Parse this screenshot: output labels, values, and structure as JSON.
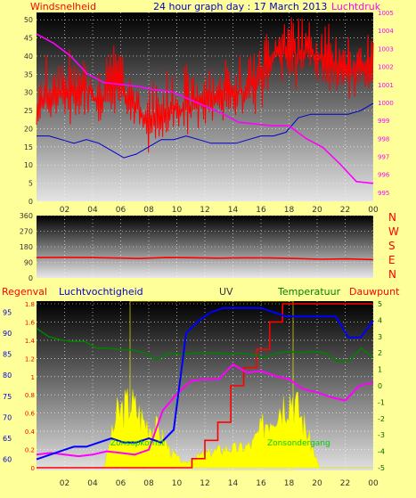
{
  "header": {
    "left_label": "Windsnelheid",
    "title": "24 hour graph day : 17 March 2013",
    "right_label": "Luchtdruk"
  },
  "mid": {
    "compass": [
      "N",
      "W",
      "S",
      "E",
      "N"
    ]
  },
  "bottom_header": {
    "regenval": "Regenval",
    "luchtvochtigheid": "Luchtvochtigheid",
    "uv": "UV",
    "temperatuur": "Temperatuur",
    "dauwpunt": "Dauwpunt"
  },
  "annotations": {
    "sunrise": "Zonsopkomst",
    "sunset": "Zonsondergang"
  },
  "colors": {
    "wind": "#ff0000",
    "gust": "#0000cc",
    "pressure": "#ff00ff",
    "humidity": "#0000ff",
    "temperature": "#008000",
    "dewpoint": "#ff00ff",
    "rain": "#ff0000",
    "uv": "#ffff00",
    "left_header": "#ff0000",
    "title": "#0000cc",
    "right_header": "#ff00ff"
  },
  "chart_data": [
    {
      "type": "line",
      "x_tick_labels": [
        "02",
        "04",
        "06",
        "08",
        "10",
        "12",
        "14",
        "16",
        "18",
        "20",
        "22",
        "00"
      ],
      "y_left_ticks": [
        "0",
        "5",
        "10",
        "15",
        "20",
        "25",
        "30",
        "35",
        "40",
        "45",
        "50"
      ],
      "y_left_range": [
        0,
        52
      ],
      "y_right_ticks": [
        "995",
        "996",
        "997",
        "998",
        "999",
        "1000",
        "1001",
        "1002",
        "1003",
        "1004",
        "1005"
      ],
      "y_right_range": [
        994.5,
        1005
      ],
      "series": [
        {
          "name": "Windsnelheid",
          "axis": "left",
          "values": [
            25,
            28,
            30,
            29,
            31,
            27,
            32,
            30,
            26,
            22,
            24,
            26,
            25,
            27,
            28,
            30,
            29,
            31,
            34,
            40,
            42,
            40,
            41,
            39,
            37,
            36,
            36,
            39
          ]
        },
        {
          "name": "",
          "axis": "left",
          "values": [
            18,
            18,
            17,
            16,
            17,
            16,
            14,
            12,
            13,
            15,
            17,
            17,
            18,
            17,
            16,
            16,
            16,
            17,
            18,
            18,
            19,
            23,
            24,
            24,
            24,
            24,
            25,
            27
          ]
        },
        {
          "name": "Luchtdruk",
          "axis": "right",
          "values": [
            1003.8,
            1003.3,
            1002.6,
            1001.6,
            1001.1,
            1001.0,
            1000.9,
            1000.7,
            1000.6,
            1000.2,
            999.8,
            999.4,
            998.9,
            998.8,
            998.7,
            998.7,
            998.0,
            997.5,
            996.6,
            995.6,
            995.5
          ]
        }
      ]
    },
    {
      "type": "line",
      "x_tick_labels": [
        "02",
        "04",
        "06",
        "08",
        "10",
        "12",
        "14",
        "16",
        "18",
        "20",
        "22",
        "00"
      ],
      "y_ticks": [
        "0",
        "90",
        "180",
        "270",
        "360"
      ],
      "ylim": [
        0,
        360
      ],
      "series": [
        {
          "name": "",
          "values": [
            118,
            119,
            118,
            115,
            112,
            118,
            117,
            114,
            116,
            115,
            112,
            108,
            110,
            106
          ]
        }
      ]
    },
    {
      "type": "line",
      "x_tick_labels": [
        "02",
        "04",
        "06",
        "08",
        "10",
        "12",
        "14",
        "16",
        "18",
        "20",
        "22",
        "00"
      ],
      "y_left_far_ticks": [
        "60",
        "65",
        "70",
        "75",
        "80",
        "85",
        "90",
        "95"
      ],
      "y_left_far_range": [
        58,
        97
      ],
      "y_left_ticks": [
        "0",
        "0.2",
        "0.4",
        "0.6",
        "0.8",
        "1",
        "1.2",
        "1.4",
        "1.6",
        "1.8"
      ],
      "y_left_range": [
        0,
        1.8
      ],
      "y_right_ticks": [
        "-5",
        "-4",
        "-3",
        "-2",
        "-1",
        "0",
        "1",
        "2",
        "3",
        "4",
        "5"
      ],
      "y_right_range": [
        -5,
        5
      ],
      "series": [
        {
          "name": "Luchtvochtigheid",
          "axis": "left_far",
          "values": [
            60,
            61,
            62,
            63,
            63,
            64,
            65,
            64,
            64,
            65,
            64,
            67,
            90,
            93,
            95,
            96,
            96,
            96,
            96,
            95,
            94,
            94,
            94,
            94,
            94,
            89,
            89,
            93
          ]
        },
        {
          "name": "Temperatuur",
          "axis": "right",
          "values": [
            3.5,
            3.0,
            2.8,
            2.7,
            2.7,
            2.3,
            2.3,
            2.2,
            2.2,
            2.0,
            1.6,
            2.0,
            1.9,
            2.0,
            2.0,
            2.0,
            1.9,
            2.0,
            1.9,
            1.7,
            2.0,
            2.1,
            2.0,
            2.1,
            2.0,
            1.5,
            1.5,
            2.3,
            1.7
          ]
        },
        {
          "name": "Dauwpunt",
          "axis": "right",
          "values": [
            -4.2,
            -4.1,
            -4.2,
            -4.3,
            -4.2,
            -4.0,
            -4.1,
            -4.2,
            -3.9,
            -1.5,
            -0.5,
            0.3,
            0.4,
            0.4,
            1.3,
            0.8,
            0.9,
            0.6,
            0.4,
            -0.2,
            -0.4,
            -0.7,
            -0.9,
            0.0,
            0.2
          ]
        },
        {
          "name": "Regenval",
          "axis": "left",
          "values": [
            0,
            0,
            0,
            0,
            0,
            0,
            0,
            0,
            0,
            0,
            0,
            0,
            0.1,
            0.3,
            0.5,
            0.9,
            1.1,
            1.3,
            1.6,
            1.8,
            1.8,
            1.8,
            1.8,
            1.8,
            1.8,
            1.8,
            1.8
          ]
        },
        {
          "name": "UV",
          "axis": "left",
          "values": [
            0,
            0,
            0,
            0,
            0,
            0,
            0.7,
            0.85,
            0.6,
            0.5,
            0.2,
            0.05,
            0.15,
            0.2,
            0.25,
            0.25,
            0.3,
            0.6,
            0.8,
            0.95,
            0.5,
            0,
            0,
            0,
            0,
            0
          ]
        }
      ]
    }
  ]
}
